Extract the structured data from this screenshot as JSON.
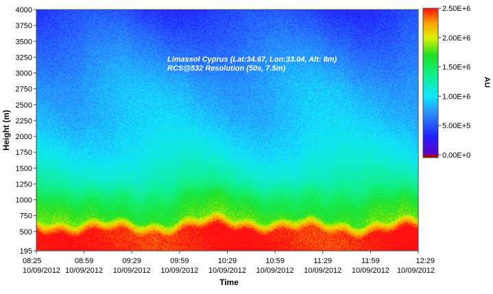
{
  "chart_data": {
    "type": "heatmap",
    "title": "Limassol Cyprus (Lat:34.67, Lon:33.04, Alt: 8m)",
    "subtitle": "RCS@532 Resolution (50s, 7.5m)",
    "xlabel": "Time",
    "ylabel": "Height (m)",
    "colorbar_label": "AU",
    "ylim": [
      195,
      4000
    ],
    "y_ticks": [
      195,
      500,
      750,
      1000,
      1250,
      1500,
      1750,
      2000,
      2250,
      2500,
      2750,
      3000,
      3250,
      3500,
      3750,
      4000
    ],
    "x_ticks": [
      {
        "time": "08:25",
        "date": "10/09/2012"
      },
      {
        "time": "08:59",
        "date": "10/09/2012"
      },
      {
        "time": "09:29",
        "date": "10/09/2012"
      },
      {
        "time": "09:59",
        "date": "10/09/2012"
      },
      {
        "time": "10:29",
        "date": "10/09/2012"
      },
      {
        "time": "10:59",
        "date": "10/09/2012"
      },
      {
        "time": "11:29",
        "date": "10/09/2012"
      },
      {
        "time": "11:59",
        "date": "10/09/2012"
      },
      {
        "time": "12:29",
        "date": "10/09/2012"
      }
    ],
    "colorbar_range": [
      0,
      2500000
    ],
    "colorbar_ticks": [
      {
        "value": 2500000,
        "label": "2.50E+6"
      },
      {
        "value": 2000000,
        "label": "2.00E+6"
      },
      {
        "value": 1500000,
        "label": "1.50E+6"
      },
      {
        "value": 1000000,
        "label": "1.00E+6"
      },
      {
        "value": 500000,
        "label": "5.00E+5"
      },
      {
        "value": 0,
        "label": "0.00E+0"
      }
    ],
    "colormap": [
      {
        "value": 0,
        "color": "#6000c0"
      },
      {
        "value": 300000,
        "color": "#2020ff"
      },
      {
        "value": 700000,
        "color": "#2a8cff"
      },
      {
        "value": 1000000,
        "color": "#10e8ff"
      },
      {
        "value": 1400000,
        "color": "#10f080"
      },
      {
        "value": 1700000,
        "color": "#20e020"
      },
      {
        "value": 2000000,
        "color": "#e0f000"
      },
      {
        "value": 2250000,
        "color": "#ffa000"
      },
      {
        "value": 2500000,
        "color": "#ff1010"
      }
    ],
    "colorbar_out_of_range_color": "#b00000",
    "profile": [
      {
        "height": 195,
        "value": 2500000
      },
      {
        "height": 500,
        "value": 2500000
      },
      {
        "height": 600,
        "value": 2150000
      },
      {
        "height": 700,
        "value": 1750000
      },
      {
        "height": 1000,
        "value": 1550000
      },
      {
        "height": 1300,
        "value": 1250000
      },
      {
        "height": 1700,
        "value": 1050000
      },
      {
        "height": 2200,
        "value": 900000
      },
      {
        "height": 2800,
        "value": 800000
      },
      {
        "height": 3300,
        "value": 650000
      },
      {
        "height": 4000,
        "value": 420000
      }
    ]
  }
}
